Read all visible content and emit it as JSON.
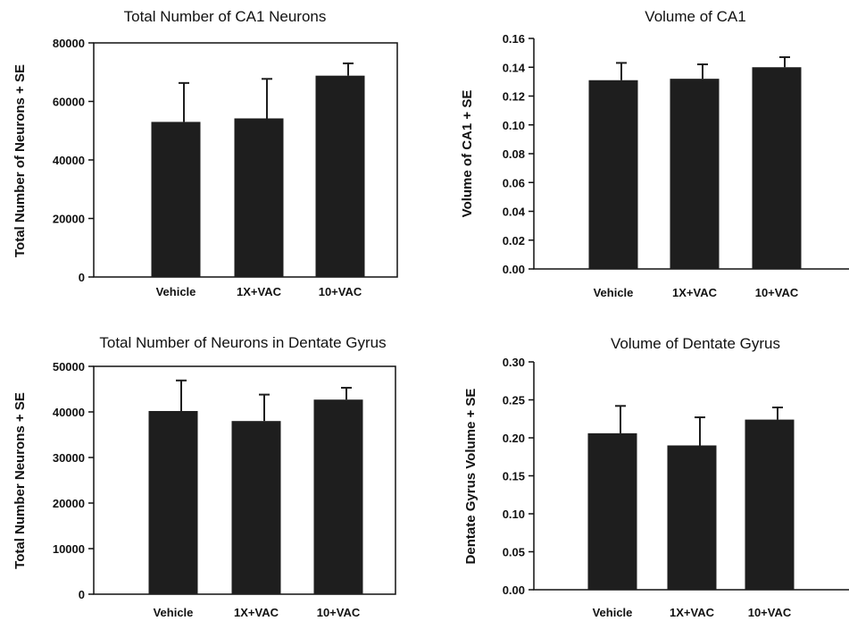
{
  "chart_data": [
    {
      "type": "bar",
      "title": "Total Number of CA1 Neurons",
      "ylabel": "Total Number of Neurons + SE",
      "xlabel": "",
      "categories": [
        "Vehicle",
        "1X+VAC",
        "10+VAC"
      ],
      "values": [
        53000,
        54200,
        68800
      ],
      "errors": [
        13300,
        13500,
        4200
      ],
      "ylim": [
        0,
        80000
      ],
      "yticks": [
        0,
        20000,
        40000,
        60000,
        80000
      ],
      "ytick_labels": [
        "0",
        "20000",
        "40000",
        "60000",
        "80000"
      ],
      "grid": false,
      "colors": {
        "bar": "#1e1e1e"
      }
    },
    {
      "type": "bar",
      "title": "Volume of CA1",
      "ylabel": "Volume of CA1 + SE",
      "xlabel": "",
      "categories": [
        "Vehicle",
        "1X+VAC",
        "10+VAC"
      ],
      "values": [
        0.131,
        0.132,
        0.14
      ],
      "errors": [
        0.012,
        0.01,
        0.007
      ],
      "ylim": [
        0,
        0.16
      ],
      "yticks": [
        0,
        0.02,
        0.04,
        0.06,
        0.08,
        0.1,
        0.12,
        0.14,
        0.16
      ],
      "ytick_labels": [
        "0.00",
        "0.02",
        "0.04",
        "0.06",
        "0.08",
        "0.10",
        "0.12",
        "0.14",
        "0.16"
      ],
      "grid": false,
      "colors": {
        "bar": "#1e1e1e"
      }
    },
    {
      "type": "bar",
      "title": "Total Number of Neurons in Dentate Gyrus",
      "ylabel": "Total Number Neurons + SE",
      "xlabel": "",
      "categories": [
        "Vehicle",
        "1X+VAC",
        "10+VAC"
      ],
      "values": [
        40200,
        38000,
        42700
      ],
      "errors": [
        6700,
        5800,
        2600
      ],
      "ylim": [
        0,
        50000
      ],
      "yticks": [
        0,
        10000,
        20000,
        30000,
        40000,
        50000
      ],
      "ytick_labels": [
        "0",
        "10000",
        "20000",
        "30000",
        "40000",
        "50000"
      ],
      "grid": false,
      "colors": {
        "bar": "#1e1e1e"
      }
    },
    {
      "type": "bar",
      "title": "Volume of Dentate Gyrus",
      "ylabel": "Dentate Gyrus Volume + SE",
      "xlabel": "",
      "categories": [
        "Vehicle",
        "1X+VAC",
        "10+VAC"
      ],
      "values": [
        0.206,
        0.19,
        0.224
      ],
      "errors": [
        0.036,
        0.037,
        0.016
      ],
      "ylim": [
        0,
        0.3
      ],
      "yticks": [
        0,
        0.05,
        0.1,
        0.15,
        0.2,
        0.25,
        0.3
      ],
      "ytick_labels": [
        "0.00",
        "0.05",
        "0.10",
        "0.15",
        "0.20",
        "0.25",
        "0.30"
      ],
      "grid": false,
      "colors": {
        "bar": "#1e1e1e"
      }
    }
  ]
}
